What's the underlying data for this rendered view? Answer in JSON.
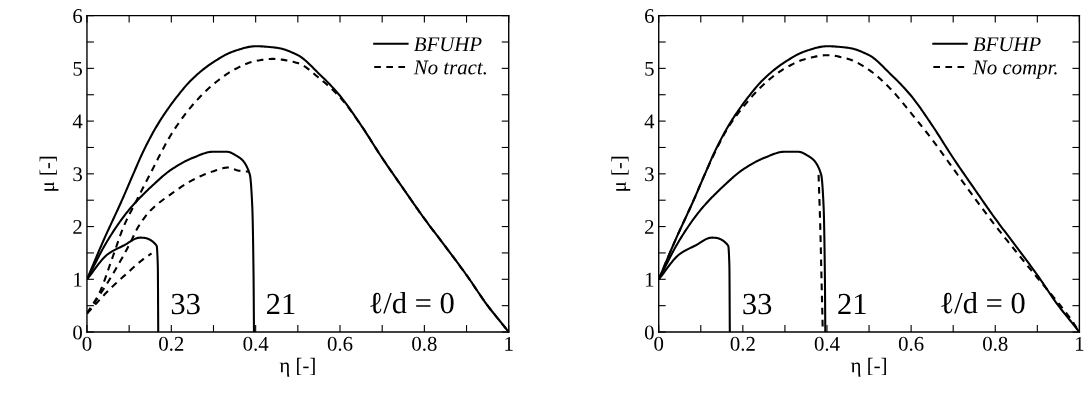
{
  "chart_data": [
    {
      "type": "line",
      "xlabel": "η [-]",
      "ylabel": "μ [-]",
      "xlim": [
        0,
        1
      ],
      "ylim": [
        0,
        6
      ],
      "xticks": [
        0,
        {
          "value": 0.1,
          "label": null
        },
        0.2,
        {
          "value": 0.3,
          "label": null
        },
        0.4,
        {
          "value": 0.5,
          "label": null
        },
        0.6,
        {
          "value": 0.7,
          "label": null
        },
        0.8,
        {
          "value": 0.9,
          "label": null
        },
        1
      ],
      "yticks": [
        0,
        {
          "value": 0.5,
          "label": null
        },
        1,
        {
          "value": 1.5,
          "label": null
        },
        2,
        {
          "value": 2.5,
          "label": null
        },
        3,
        {
          "value": 3.5,
          "label": null
        },
        4,
        {
          "value": 4.5,
          "label": null
        },
        5,
        {
          "value": 5.5,
          "label": null
        },
        6
      ],
      "grid": false,
      "legend": "top right",
      "annotations": [
        "33",
        "21",
        "ℓ/d = 0"
      ],
      "series": [
        {
          "name": "BFUHP",
          "color": "#000000",
          "line_style": "solid",
          "x": [
            0,
            0.04,
            0.083,
            0.11,
            0.135,
            0.165,
            0.2,
            0.25,
            0.3,
            0.35,
            0.4,
            0.45,
            0.5,
            0.55,
            0.6,
            0.65,
            0.7,
            0.75,
            0.8,
            0.85,
            0.9,
            0.95,
            0.98,
            1
          ],
          "values": [
            1,
            1.75,
            2.5,
            3.0,
            3.45,
            3.9,
            4.32,
            4.8,
            5.12,
            5.33,
            5.42,
            5.39,
            5.25,
            4.9,
            4.48,
            3.92,
            3.3,
            2.72,
            2.15,
            1.62,
            1.08,
            0.5,
            0.2,
            0
          ]
        },
        {
          "color": "#000000",
          "line_style": "solid",
          "x": [
            0,
            0.05,
            0.1,
            0.153,
            0.2,
            0.25,
            0.3,
            0.33,
            0.357,
            0.386,
            0.392,
            0.395,
            0.396
          ],
          "values": [
            1,
            1.75,
            2.32,
            2.76,
            3.08,
            3.3,
            3.42,
            3.42,
            3.33,
            2.99,
            2.37,
            1.07,
            0
          ]
        },
        {
          "color": "#000000",
          "line_style": "solid",
          "x": [
            0,
            0.05,
            0.087,
            0.126,
            0.165,
            0.168,
            0.169
          ],
          "values": [
            1,
            1.48,
            1.64,
            1.79,
            1.64,
            1.25,
            0
          ]
        },
        {
          "name": "No tract.",
          "color": "#000000",
          "line_style": "dashed",
          "x": [
            0,
            0.03,
            0.06,
            0.087,
            0.118,
            0.15,
            0.2,
            0.25,
            0.3,
            0.35,
            0.4,
            0.44,
            0.5,
            0.55,
            0.6,
            0.65,
            0.7,
            0.75,
            0.8,
            0.85,
            0.9,
            0.95,
            0.98,
            1
          ],
          "values": [
            0.35,
            0.75,
            1.4,
            2.0,
            2.5,
            3.0,
            3.75,
            4.3,
            4.7,
            4.98,
            5.14,
            5.18,
            5.1,
            4.82,
            4.45,
            3.92,
            3.3,
            2.72,
            2.15,
            1.62,
            1.08,
            0.5,
            0.2,
            0
          ]
        },
        {
          "color": "#000000",
          "line_style": "dashed",
          "x": [
            0,
            0.05,
            0.1,
            0.122,
            0.15,
            0.2,
            0.25,
            0.3,
            0.335,
            0.36,
            0.385
          ],
          "values": [
            0.35,
            0.95,
            1.65,
            2.0,
            2.3,
            2.62,
            2.88,
            3.05,
            3.12,
            3.06,
            3.04
          ]
        },
        {
          "color": "#000000",
          "line_style": "dashed",
          "x": [
            0,
            0.05,
            0.1,
            0.13,
            0.153
          ],
          "values": [
            0.35,
            0.78,
            1.15,
            1.36,
            1.49
          ]
        }
      ]
    },
    {
      "type": "line",
      "xlabel": "η [-]",
      "ylabel": "μ [-]",
      "xlim": [
        0,
        1
      ],
      "ylim": [
        0,
        6
      ],
      "xticks": [
        0,
        {
          "value": 0.1,
          "label": null
        },
        0.2,
        {
          "value": 0.3,
          "label": null
        },
        0.4,
        {
          "value": 0.5,
          "label": null
        },
        0.6,
        {
          "value": 0.7,
          "label": null
        },
        0.8,
        {
          "value": 0.9,
          "label": null
        },
        1
      ],
      "yticks": [
        0,
        {
          "value": 0.5,
          "label": null
        },
        1,
        {
          "value": 1.5,
          "label": null
        },
        2,
        {
          "value": 2.5,
          "label": null
        },
        3,
        {
          "value": 3.5,
          "label": null
        },
        4,
        {
          "value": 4.5,
          "label": null
        },
        5,
        {
          "value": 5.5,
          "label": null
        },
        6
      ],
      "grid": false,
      "legend": "top right",
      "annotations": [
        "33",
        "21",
        "ℓ/d = 0"
      ],
      "series": [
        {
          "name": "BFUHP",
          "color": "#000000",
          "line_style": "solid",
          "x": [
            0,
            0.04,
            0.083,
            0.11,
            0.135,
            0.165,
            0.2,
            0.25,
            0.3,
            0.35,
            0.4,
            0.45,
            0.5,
            0.55,
            0.6,
            0.65,
            0.7,
            0.75,
            0.8,
            0.85,
            0.9,
            0.95,
            0.98,
            1
          ],
          "values": [
            1,
            1.75,
            2.5,
            3.0,
            3.45,
            3.9,
            4.32,
            4.8,
            5.12,
            5.33,
            5.42,
            5.39,
            5.25,
            4.9,
            4.48,
            3.92,
            3.3,
            2.72,
            2.15,
            1.62,
            1.08,
            0.5,
            0.2,
            0
          ]
        },
        {
          "color": "#000000",
          "line_style": "solid",
          "x": [
            0,
            0.05,
            0.1,
            0.153,
            0.2,
            0.25,
            0.3,
            0.33,
            0.357,
            0.386,
            0.392,
            0.395,
            0.396
          ],
          "values": [
            1,
            1.75,
            2.32,
            2.76,
            3.08,
            3.3,
            3.42,
            3.42,
            3.33,
            2.99,
            2.37,
            1.07,
            0
          ]
        },
        {
          "color": "#000000",
          "line_style": "solid",
          "x": [
            0,
            0.05,
            0.087,
            0.126,
            0.165,
            0.168,
            0.169
          ],
          "values": [
            1,
            1.48,
            1.64,
            1.79,
            1.64,
            1.25,
            0
          ]
        },
        {
          "name": "No compr.",
          "color": "#000000",
          "line_style": "dashed",
          "x": [
            0,
            0.04,
            0.083,
            0.11,
            0.135,
            0.165,
            0.2,
            0.25,
            0.3,
            0.35,
            0.4,
            0.45,
            0.5,
            0.55,
            0.6,
            0.65,
            0.7,
            0.75,
            0.8,
            0.85,
            0.9,
            0.95,
            0.98,
            1
          ],
          "values": [
            1,
            1.75,
            2.5,
            3.0,
            3.43,
            3.88,
            4.26,
            4.7,
            5.0,
            5.18,
            5.25,
            5.18,
            4.97,
            4.62,
            4.15,
            3.65,
            3.1,
            2.55,
            2.02,
            1.52,
            1.03,
            0.55,
            0.24,
            0
          ]
        },
        {
          "color": "#000000",
          "line_style": "dashed",
          "x": [
            0.38,
            0.384,
            0.387,
            0.39
          ],
          "values": [
            2.98,
            2.0,
            1.0,
            0
          ]
        }
      ]
    }
  ]
}
